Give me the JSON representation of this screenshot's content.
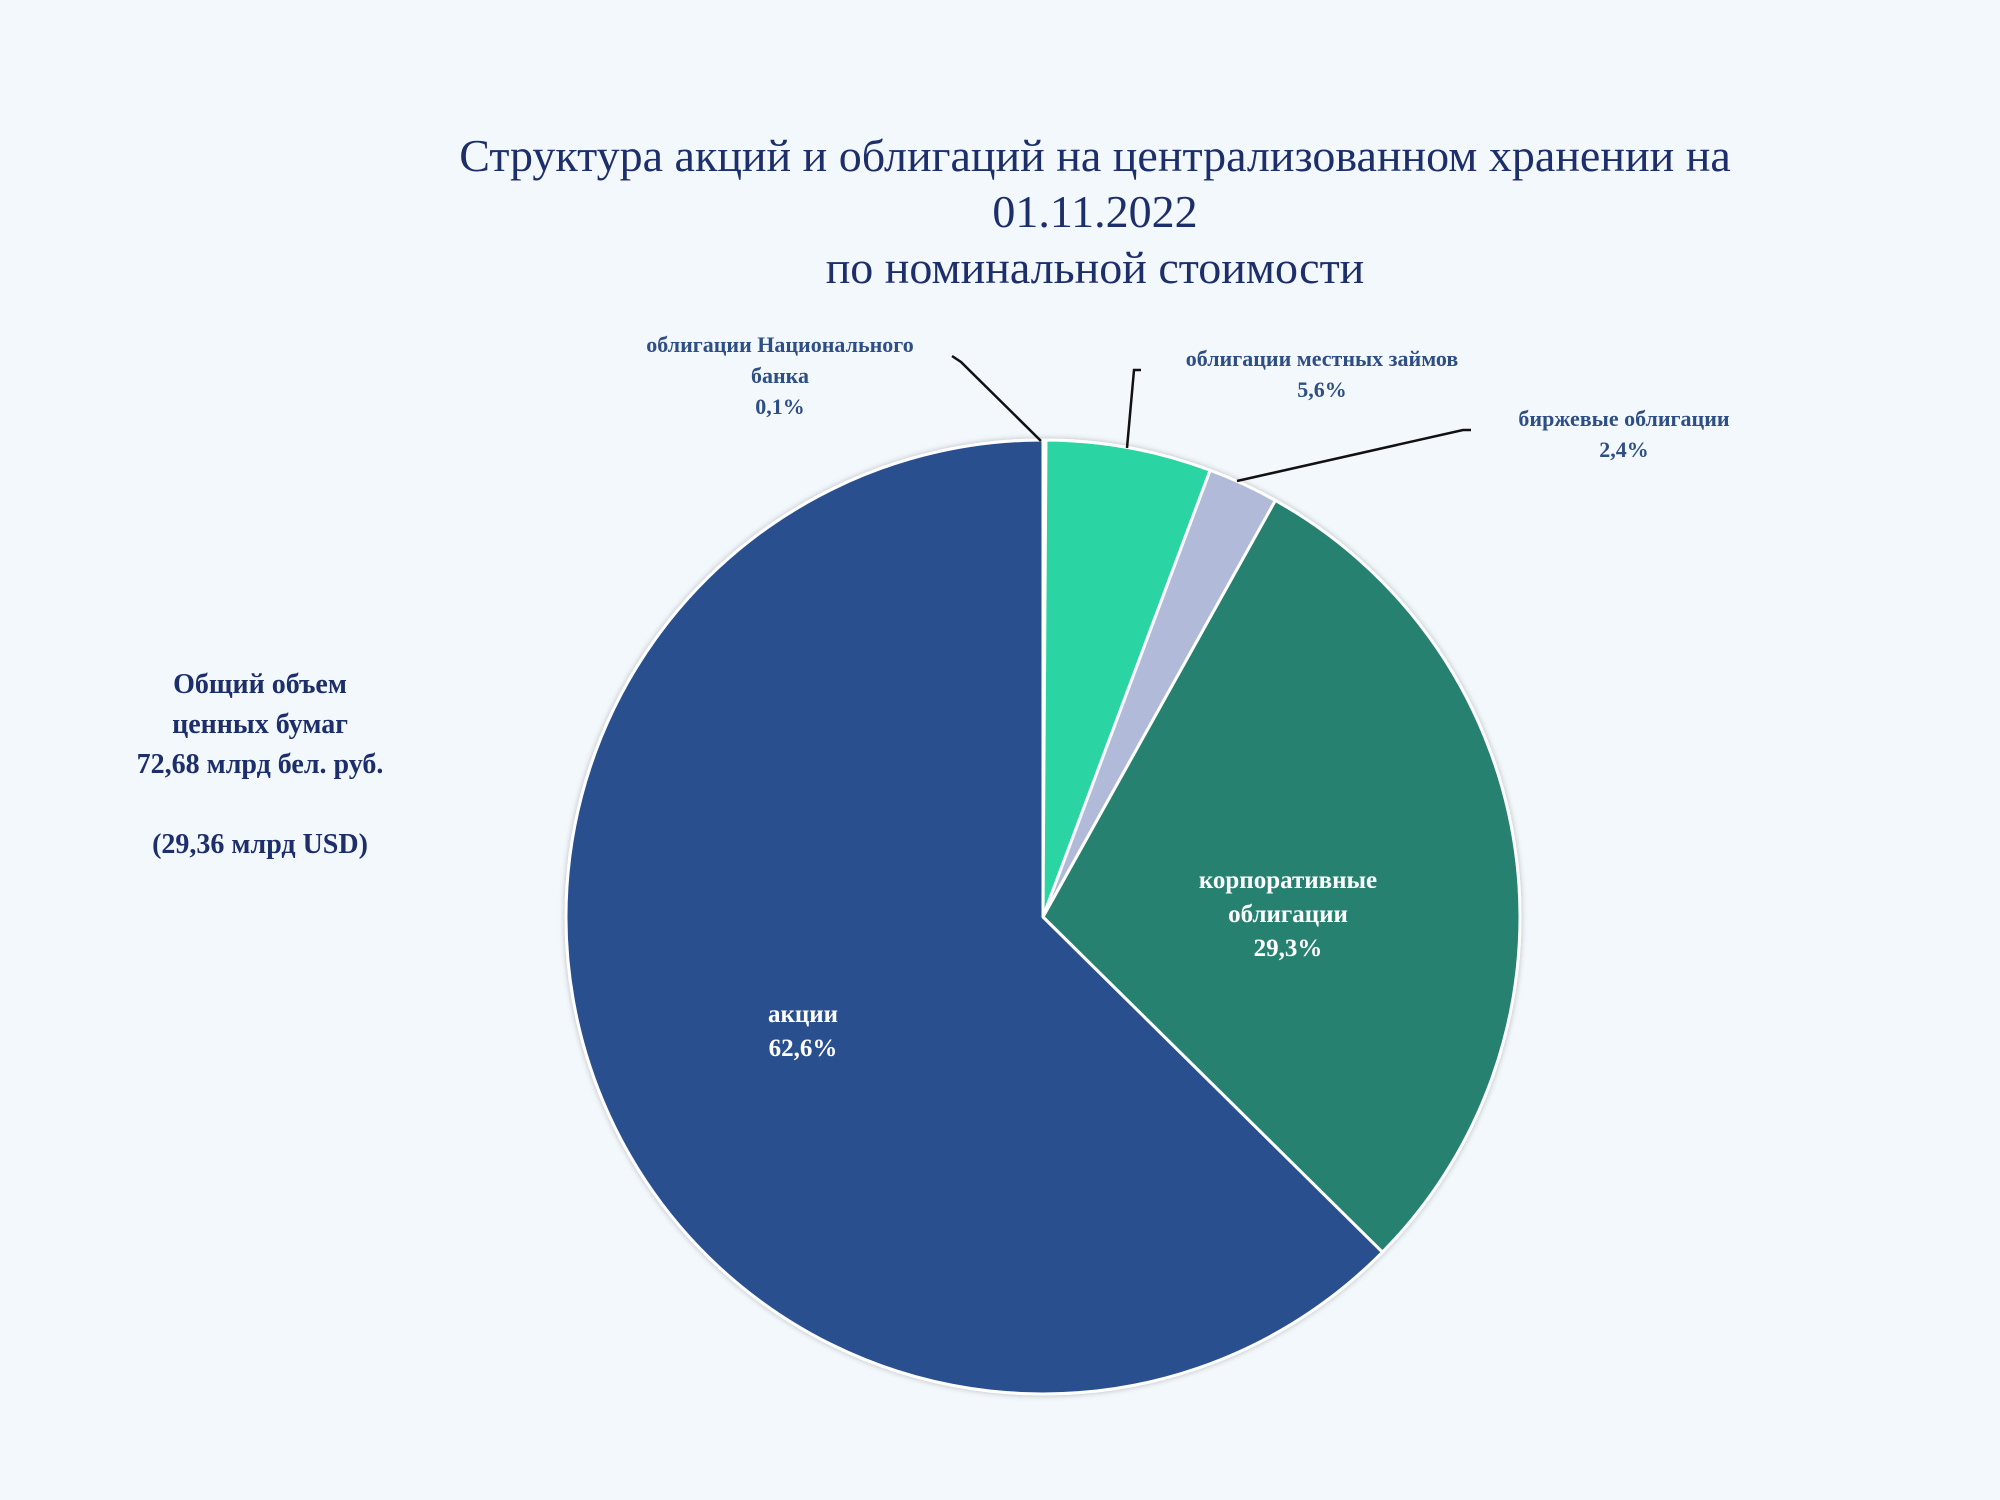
{
  "title_lines": [
    "Структура акций и облигаций  на централизованном хранении на",
    "01.11.2022",
    "по номинальной стоимости"
  ],
  "summary": {
    "line1": "Общий объем",
    "line2": "ценных бумаг",
    "line3": "72,68  млрд бел. руб.",
    "line4": "(29,36  млрд USD)"
  },
  "chart_data": {
    "type": "pie",
    "start_angle_deg": 0,
    "direction": "clockwise",
    "slices": [
      {
        "name": "облигации Национального банка",
        "label_lines": [
          "облигации Национального",
          "банка",
          "0,1%"
        ],
        "value": 0.1,
        "color": "#2b7a6a",
        "label_style": "outside"
      },
      {
        "name": "облигации местных займов",
        "label_lines": [
          "облигации местных займов",
          "5,6%"
        ],
        "value": 5.6,
        "color": "#2cd4a3",
        "label_style": "outside"
      },
      {
        "name": "биржевые облигации",
        "label_lines": [
          "биржевые облигации",
          "2,4%"
        ],
        "value": 2.4,
        "color": "#b1bad9",
        "label_style": "outside"
      },
      {
        "name": "корпоративные облигации",
        "label_lines": [
          "корпоративные",
          "облигации",
          "29,3%"
        ],
        "value": 29.3,
        "color": "#258170",
        "label_style": "inside"
      },
      {
        "name": "акции",
        "label_lines": [
          "акции",
          "62,6%"
        ],
        "value": 62.6,
        "color": "#29508e",
        "label_style": "inside"
      }
    ],
    "outside_label_color": "#2e4e86",
    "inside_label_color": "#ffffff",
    "leader_line_color": "#111111"
  }
}
